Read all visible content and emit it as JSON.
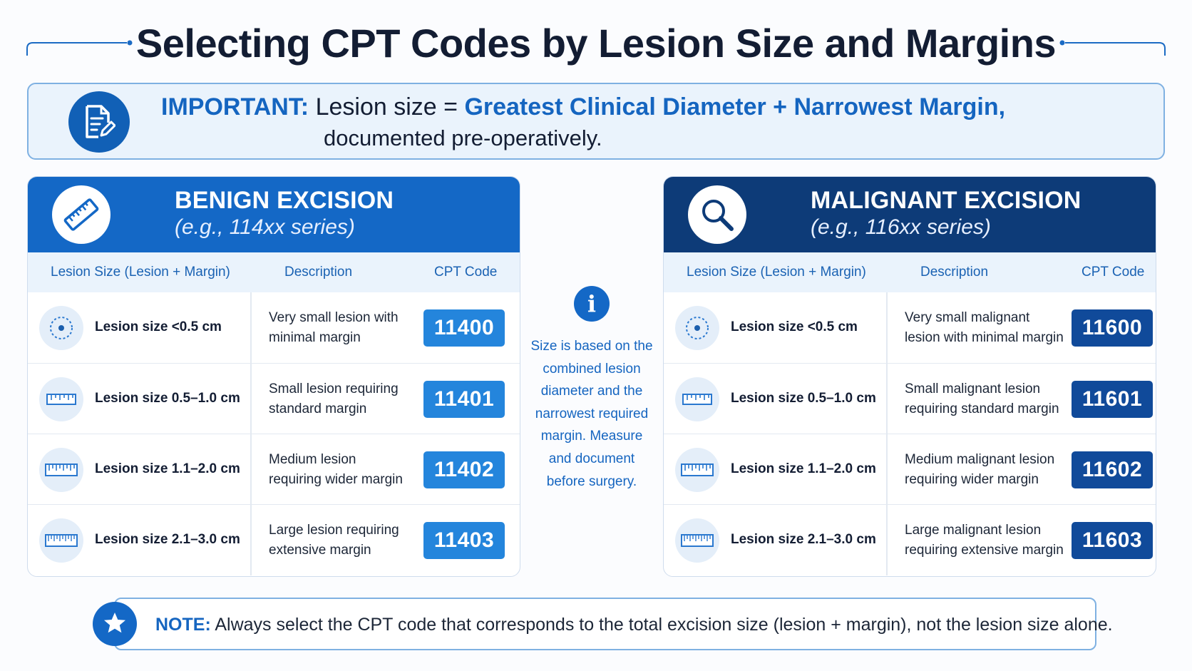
{
  "title": "Selecting CPT Codes by Lesion Size and Margins",
  "important": {
    "label": "IMPORTANT:",
    "lead": "Lesion size =",
    "emphasis": "Greatest Clinical Diameter + Narrowest Margin,",
    "line2": "documented pre-operatively."
  },
  "benign": {
    "title": "BENIGN EXCISION",
    "subtitle": "(e.g., 114xx series)",
    "headers": {
      "size": "Lesion Size (Lesion + Margin)",
      "desc": "Description",
      "code": "CPT Code"
    },
    "rows": [
      {
        "size": "Lesion size <0.5 cm",
        "desc": "Very small lesion with minimal margin",
        "code": "11400"
      },
      {
        "size": "Lesion size 0.5–1.0 cm",
        "desc": "Small lesion requiring standard margin",
        "code": "11401"
      },
      {
        "size": "Lesion size 1.1–2.0 cm",
        "desc": "Medium lesion requiring wider margin",
        "code": "11402"
      },
      {
        "size": "Lesion size 2.1–3.0 cm",
        "desc": "Large lesion requiring extensive margin",
        "code": "11403"
      }
    ]
  },
  "malignant": {
    "title": "MALIGNANT EXCISION",
    "subtitle": "(e.g., 116xx series)",
    "headers": {
      "size": "Lesion Size (Lesion + Margin)",
      "desc": "Description",
      "code": "CPT Code"
    },
    "rows": [
      {
        "size": "Lesion size <0.5 cm",
        "desc": "Very small malignant lesion with minimal margin",
        "code": "11600"
      },
      {
        "size": "Lesion size 0.5–1.0 cm",
        "desc": "Small malignant lesion requiring standard margin",
        "code": "11601"
      },
      {
        "size": "Lesion size 1.1–2.0 cm",
        "desc": "Medium malignant lesion requiring wider margin",
        "code": "11602"
      },
      {
        "size": "Lesion size 2.1–3.0 cm",
        "desc": "Large malignant lesion requiring extensive margin",
        "code": "11603"
      }
    ]
  },
  "info": {
    "icon_glyph": "i",
    "text": "Size is based on the combined lesion diameter and the narrowest required margin. Measure and document before surgery."
  },
  "note": {
    "label": "NOTE:",
    "text": "Always select the CPT code that corresponds to the total excision size (lesion + margin), not the lesion size alone."
  },
  "colors": {
    "benign_header": "#1468c6",
    "malignant_header": "#0d3b78",
    "benign_code": "#2485dc",
    "malignant_code": "#104a9a",
    "accent": "#1565c0"
  }
}
